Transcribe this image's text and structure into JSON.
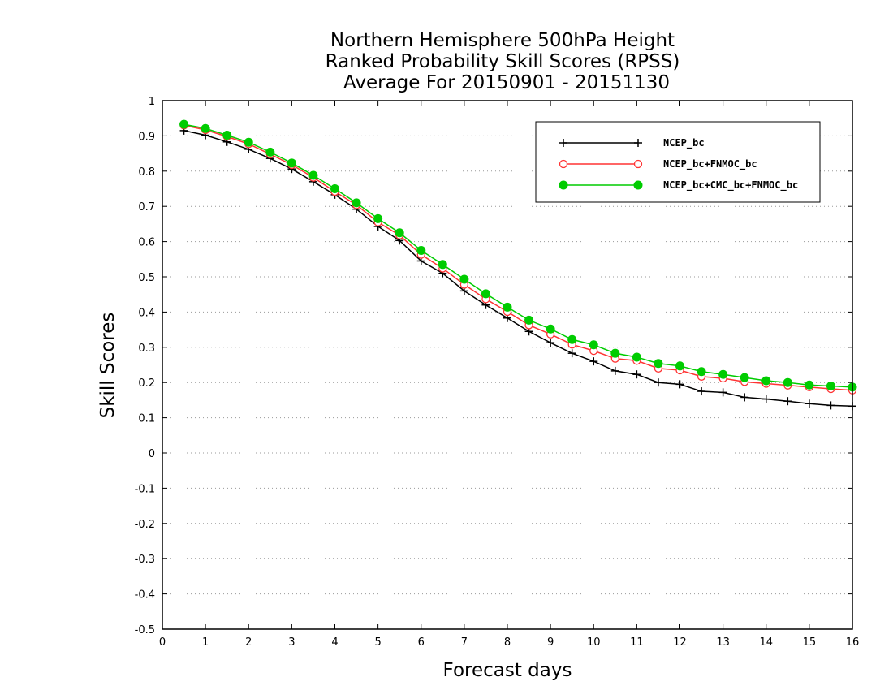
{
  "chart_data": {
    "type": "line",
    "title": [
      "Northern Hemisphere 500hPa Height",
      "Ranked Probability Skill Scores (RPSS)",
      "Average For 20150901 - 20151130"
    ],
    "xlabel": "Forecast days",
    "ylabel": "Skill Scores",
    "xlim": [
      0,
      16
    ],
    "ylim": [
      -0.5,
      1
    ],
    "xticks": [
      0,
      1,
      2,
      3,
      4,
      5,
      6,
      7,
      8,
      9,
      10,
      11,
      12,
      13,
      14,
      15,
      16
    ],
    "yticks": [
      -0.5,
      -0.4,
      -0.3,
      -0.2,
      -0.1,
      0,
      0.1,
      0.2,
      0.3,
      0.4,
      0.5,
      0.6,
      0.7,
      0.8,
      0.9,
      1
    ],
    "grid": "horizontal-dotted",
    "legend_position": "top-right",
    "x": [
      0.5,
      1,
      1.5,
      2,
      2.5,
      3,
      3.5,
      4,
      4.5,
      5,
      5.5,
      6,
      6.5,
      7,
      7.5,
      8,
      8.5,
      9,
      9.5,
      10,
      10.5,
      11,
      11.5,
      12,
      12.5,
      13,
      13.5,
      14,
      14.5,
      15,
      15.5,
      16
    ],
    "series": [
      {
        "name": "NCEP_bc",
        "color": "#000000",
        "marker": "plus",
        "values": [
          0.915,
          0.902,
          0.883,
          0.862,
          0.836,
          0.806,
          0.77,
          0.733,
          0.692,
          0.643,
          0.603,
          0.545,
          0.51,
          0.46,
          0.42,
          0.383,
          0.345,
          0.313,
          0.283,
          0.26,
          0.233,
          0.223,
          0.2,
          0.195,
          0.175,
          0.172,
          0.158,
          0.153,
          0.147,
          0.14,
          0.135,
          0.133
        ]
      },
      {
        "name": "NCEP_bc+FNMOC_bc",
        "color": "#ff3333",
        "marker": "open-circle",
        "values": [
          0.93,
          0.917,
          0.898,
          0.877,
          0.848,
          0.818,
          0.782,
          0.742,
          0.704,
          0.655,
          0.618,
          0.563,
          0.524,
          0.478,
          0.437,
          0.401,
          0.363,
          0.337,
          0.308,
          0.29,
          0.268,
          0.262,
          0.24,
          0.235,
          0.217,
          0.212,
          0.202,
          0.197,
          0.192,
          0.187,
          0.182,
          0.178
        ]
      },
      {
        "name": "NCEP_bc+CMC_bc+FNMOC_bc",
        "color": "#00cc00",
        "marker": "filled-circle",
        "values": [
          0.933,
          0.921,
          0.902,
          0.882,
          0.854,
          0.823,
          0.788,
          0.75,
          0.71,
          0.665,
          0.625,
          0.575,
          0.535,
          0.493,
          0.452,
          0.414,
          0.377,
          0.352,
          0.322,
          0.307,
          0.283,
          0.272,
          0.254,
          0.247,
          0.231,
          0.223,
          0.214,
          0.205,
          0.2,
          0.193,
          0.19,
          0.187
        ]
      }
    ]
  }
}
